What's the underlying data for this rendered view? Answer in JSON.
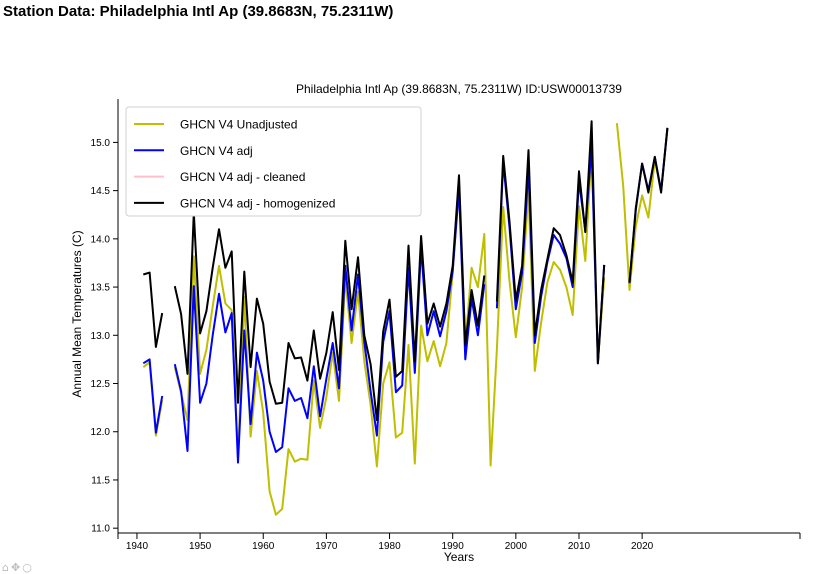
{
  "page": {
    "title": "Station Data: Philadelphia Intl Ap (39.8683N, 75.2311W)"
  },
  "toolbar": {
    "icons": [
      "home-icon",
      "move-icon",
      "zoom-icon"
    ]
  },
  "chart_data": {
    "type": "line",
    "title": "Philadelphia Intl Ap (39.8683N, 75.2311W) ID:USW00013739",
    "xlabel": "Years",
    "ylabel": "Annual Mean Temperatures (C)",
    "xlim": [
      1937,
      2045
    ],
    "ylim": [
      10.95,
      15.45
    ],
    "x_ticks": [
      1940,
      1950,
      1960,
      1970,
      1980,
      1990,
      2000,
      2010,
      2020
    ],
    "y_ticks": [
      11.0,
      11.5,
      12.0,
      12.5,
      13.0,
      13.5,
      14.0,
      14.5,
      15.0
    ],
    "y_tick_labels": [
      "11.0",
      "11.5",
      "12.0",
      "12.5",
      "13.0",
      "13.5",
      "14.0",
      "14.5",
      "15.0"
    ],
    "legend_position": "top-left",
    "grid": false,
    "series": [
      {
        "name": "GHCN V4 Unadjusted",
        "color": "#bfbf00",
        "x": [
          1941,
          1942,
          1943,
          1944,
          null,
          1946,
          1947,
          1948,
          1949,
          1950,
          1951,
          1952,
          1953,
          1954,
          1955,
          1956,
          1957,
          1958,
          1959,
          1960,
          1961,
          1962,
          1963,
          1964,
          1965,
          1966,
          1967,
          1968,
          1969,
          1970,
          1971,
          1972,
          1973,
          1974,
          1975,
          1976,
          1977,
          1978,
          1979,
          1980,
          1981,
          1982,
          1983,
          1984,
          1985,
          1986,
          1987,
          1988,
          1989,
          1990,
          1991,
          1992,
          1993,
          1994,
          1995,
          1996,
          1997,
          1998,
          1999,
          2000,
          2001,
          2002,
          2003,
          2004,
          2005,
          2006,
          2007,
          2008,
          2009,
          2010,
          2011,
          2012,
          2013,
          2014,
          2015,
          2016,
          2017,
          2018,
          2019,
          2020,
          2021,
          2022,
          2023,
          2024
        ],
        "y": [
          12.67,
          12.72,
          11.96,
          12.33,
          null,
          12.67,
          12.4,
          12.12,
          13.82,
          12.6,
          12.85,
          13.3,
          13.72,
          13.33,
          13.26,
          11.72,
          13.4,
          11.95,
          12.63,
          12.2,
          11.38,
          11.14,
          11.2,
          11.82,
          11.69,
          11.72,
          11.71,
          12.53,
          12.04,
          12.36,
          12.82,
          12.32,
          13.6,
          12.92,
          13.45,
          12.73,
          12.28,
          11.64,
          12.5,
          12.72,
          11.94,
          11.99,
          12.9,
          11.67,
          13.1,
          12.73,
          12.94,
          12.68,
          12.92,
          13.65,
          14.57,
          12.9,
          13.7,
          13.5,
          14.05,
          11.65,
          12.86,
          14.33,
          13.56,
          12.98,
          13.5,
          14.5,
          12.63,
          13.13,
          13.55,
          13.76,
          13.68,
          13.5,
          13.21,
          14.34,
          13.77,
          14.92,
          12.72,
          13.6,
          null,
          15.2,
          14.55,
          13.47,
          14.13,
          14.45,
          14.22,
          14.82,
          14.5,
          15.13
        ]
      },
      {
        "name": "GHCN V4 adj",
        "color": "#0000ff",
        "x": [
          1941,
          1942,
          1943,
          1944,
          null,
          1946,
          1947,
          1948,
          1949,
          1950,
          1951,
          1952,
          1953,
          1954,
          1955,
          1956,
          1957,
          1958,
          1959,
          1960,
          1961,
          1962,
          1963,
          1964,
          1965,
          1966,
          1967,
          1968,
          1969,
          1970,
          1971,
          1972,
          1973,
          1974,
          1975,
          1976,
          1977,
          1978,
          1979,
          1980,
          1981,
          1982,
          1983,
          1984,
          1985,
          1986,
          1987,
          1988,
          1989,
          1990,
          1991,
          1992,
          1993,
          1994,
          1995,
          null,
          1997,
          1998,
          1999,
          2000,
          2001,
          2002,
          2003,
          2004,
          2005,
          2006,
          2007,
          2008,
          2009,
          2010,
          2011,
          2012,
          2013,
          2014,
          2015,
          null,
          2018,
          2019,
          2020,
          2021,
          2022,
          2023,
          2024
        ],
        "y": [
          12.71,
          12.75,
          11.99,
          12.37,
          null,
          12.7,
          12.42,
          11.8,
          13.51,
          12.3,
          12.5,
          13.0,
          13.43,
          13.03,
          13.23,
          11.68,
          13.05,
          12.08,
          12.82,
          12.53,
          12.0,
          11.79,
          11.84,
          12.45,
          12.32,
          12.35,
          12.14,
          12.68,
          12.16,
          12.55,
          12.92,
          12.45,
          13.72,
          13.05,
          13.63,
          12.93,
          12.42,
          11.96,
          12.93,
          13.25,
          12.41,
          12.48,
          13.7,
          12.61,
          13.91,
          13.0,
          13.25,
          12.99,
          13.25,
          13.67,
          14.52,
          12.75,
          13.38,
          13.0,
          13.53,
          null,
          13.28,
          14.8,
          14.12,
          13.27,
          13.65,
          14.74,
          12.92,
          13.4,
          13.76,
          14.04,
          13.95,
          13.8,
          13.5,
          14.6,
          14.09,
          14.95,
          12.71,
          13.73,
          null,
          null,
          13.54,
          14.3,
          14.78,
          14.5,
          14.85,
          14.5,
          15.15
        ]
      },
      {
        "name": "GHCN V4 adj - cleaned",
        "color": "#ffc0cb",
        "x": [],
        "y": []
      },
      {
        "name": "GHCN V4 adj - homogenized",
        "color": "#000000",
        "x": [
          1941,
          1942,
          1943,
          1944,
          null,
          1946,
          1947,
          1948,
          1949,
          1950,
          1951,
          1952,
          1953,
          1954,
          1955,
          1956,
          1957,
          1958,
          1959,
          1960,
          1961,
          1962,
          1963,
          1964,
          1965,
          1966,
          1967,
          1968,
          1969,
          1970,
          1971,
          1972,
          1973,
          1974,
          1975,
          1976,
          1977,
          1978,
          1979,
          1980,
          1981,
          1982,
          1983,
          1984,
          1985,
          1986,
          1987,
          1988,
          1989,
          1990,
          1991,
          1992,
          1993,
          1994,
          1995,
          null,
          1997,
          1998,
          1999,
          2000,
          2001,
          2002,
          2003,
          2004,
          2005,
          2006,
          2007,
          2008,
          2009,
          2010,
          2011,
          2012,
          2013,
          2014,
          2015,
          null,
          2018,
          2019,
          2020,
          2021,
          2022,
          2023,
          2024
        ],
        "y": [
          13.63,
          13.65,
          12.88,
          13.23,
          null,
          13.51,
          13.22,
          12.6,
          14.27,
          13.02,
          13.25,
          13.7,
          14.1,
          13.7,
          13.87,
          12.3,
          13.66,
          12.67,
          13.38,
          13.12,
          12.52,
          12.29,
          12.3,
          12.92,
          12.76,
          12.77,
          12.53,
          13.05,
          12.55,
          12.82,
          13.24,
          12.64,
          13.98,
          13.27,
          13.81,
          13.0,
          12.7,
          12.12,
          13.04,
          13.37,
          12.57,
          12.63,
          13.93,
          12.73,
          14.03,
          13.12,
          13.33,
          13.09,
          13.33,
          13.72,
          14.66,
          12.9,
          13.47,
          13.1,
          13.62,
          null,
          13.35,
          14.86,
          14.18,
          13.36,
          13.72,
          14.92,
          13.0,
          13.47,
          13.79,
          14.11,
          14.04,
          13.83,
          13.55,
          14.7,
          14.07,
          15.22,
          12.71,
          13.73,
          null,
          null,
          13.55,
          14.32,
          14.78,
          14.48,
          14.85,
          14.48,
          15.15
        ]
      }
    ]
  }
}
